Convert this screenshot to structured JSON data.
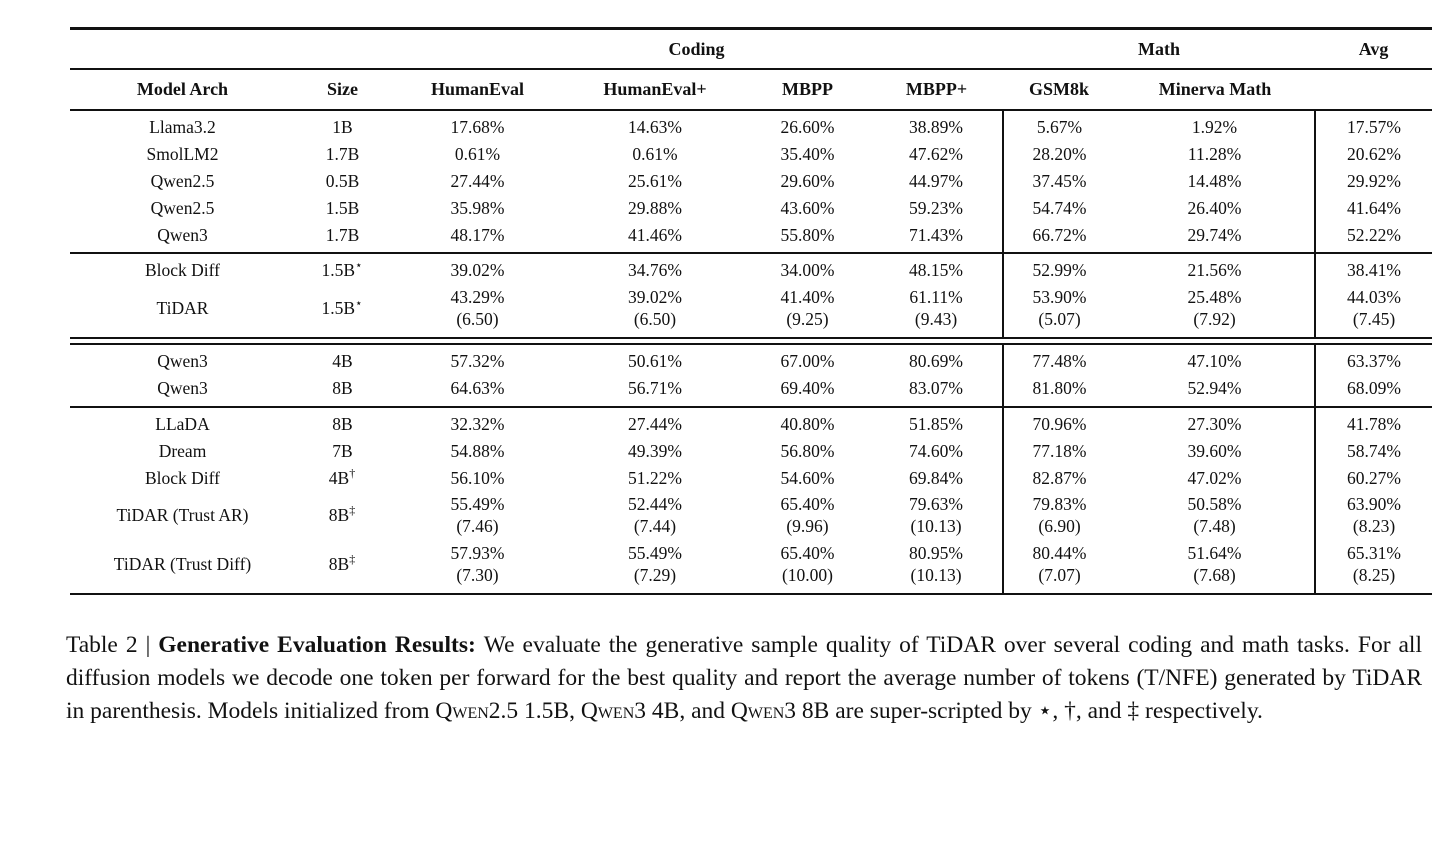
{
  "table": {
    "groups": [
      {
        "label": "",
        "span": 2
      },
      {
        "label": "Coding",
        "span": 4
      },
      {
        "label": "Math",
        "span": 2
      },
      {
        "label": "Avg",
        "span": 1
      }
    ],
    "columns": [
      "Model Arch",
      "Size",
      "HumanEval",
      "HumanEval+",
      "MBPP",
      "MBPP+",
      "GSM8k",
      "Minerva Math",
      ""
    ],
    "blocks": [
      {
        "id": "ar-small",
        "separator_before": "none",
        "rows": [
          {
            "model": "Llama3.2",
            "size": "1B",
            "size_sup": "",
            "values": [
              "17.68%",
              "14.63%",
              "26.60%",
              "38.89%",
              "5.67%",
              "1.92%",
              "17.57%"
            ]
          },
          {
            "model": "SmolLM2",
            "size": "1.7B",
            "size_sup": "",
            "values": [
              "0.61%",
              "0.61%",
              "35.40%",
              "47.62%",
              "28.20%",
              "11.28%",
              "20.62%"
            ]
          },
          {
            "model": "Qwen2.5",
            "size": "0.5B",
            "size_sup": "",
            "values": [
              "27.44%",
              "25.61%",
              "29.60%",
              "44.97%",
              "37.45%",
              "14.48%",
              "29.92%"
            ]
          },
          {
            "model": "Qwen2.5",
            "size": "1.5B",
            "size_sup": "",
            "values": [
              "35.98%",
              "29.88%",
              "43.60%",
              "59.23%",
              "54.74%",
              "26.40%",
              "41.64%"
            ]
          },
          {
            "model": "Qwen3",
            "size": "1.7B",
            "size_sup": "",
            "values": [
              "48.17%",
              "41.46%",
              "55.80%",
              "71.43%",
              "66.72%",
              "29.74%",
              "52.22%"
            ]
          }
        ]
      },
      {
        "id": "diffusion-small",
        "separator_before": "single",
        "rows": [
          {
            "model": "Block Diff",
            "size": "1.5B",
            "size_sup": "⋆",
            "values": [
              "39.02%",
              "34.76%",
              "34.00%",
              "48.15%",
              "52.99%",
              "21.56%",
              "38.41%"
            ]
          },
          {
            "model": "TiDAR",
            "size": "1.5B",
            "size_sup": "⋆",
            "values": [
              "43.29%",
              "39.02%",
              "41.40%",
              "61.11%",
              "53.90%",
              "25.48%",
              "44.03%"
            ],
            "sub": [
              "(6.50)",
              "(6.50)",
              "(9.25)",
              "(9.43)",
              "(5.07)",
              "(7.92)",
              "(7.45)"
            ]
          }
        ]
      },
      {
        "id": "ar-large",
        "separator_before": "double",
        "rows": [
          {
            "model": "Qwen3",
            "size": "4B",
            "size_sup": "",
            "values": [
              "57.32%",
              "50.61%",
              "67.00%",
              "80.69%",
              "77.48%",
              "47.10%",
              "63.37%"
            ]
          },
          {
            "model": "Qwen3",
            "size": "8B",
            "size_sup": "",
            "values": [
              "64.63%",
              "56.71%",
              "69.40%",
              "83.07%",
              "81.80%",
              "52.94%",
              "68.09%"
            ]
          }
        ]
      },
      {
        "id": "diffusion-large",
        "separator_before": "single",
        "rows": [
          {
            "model": "LLaDA",
            "size": "8B",
            "size_sup": "",
            "values": [
              "32.32%",
              "27.44%",
              "40.80%",
              "51.85%",
              "70.96%",
              "27.30%",
              "41.78%"
            ]
          },
          {
            "model": "Dream",
            "size": "7B",
            "size_sup": "",
            "values": [
              "54.88%",
              "49.39%",
              "56.80%",
              "74.60%",
              "77.18%",
              "39.60%",
              "58.74%"
            ]
          },
          {
            "model": "Block Diff",
            "size": "4B",
            "size_sup": "†",
            "values": [
              "56.10%",
              "51.22%",
              "54.60%",
              "69.84%",
              "82.87%",
              "47.02%",
              "60.27%"
            ]
          },
          {
            "model": "TiDAR (Trust AR)",
            "size": "8B",
            "size_sup": "‡",
            "values": [
              "55.49%",
              "52.44%",
              "65.40%",
              "79.63%",
              "79.83%",
              "50.58%",
              "63.90%"
            ],
            "sub": [
              "(7.46)",
              "(7.44)",
              "(9.96)",
              "(10.13)",
              "(6.90)",
              "(7.48)",
              "(8.23)"
            ]
          },
          {
            "model": "TiDAR (Trust Diff)",
            "size": "8B",
            "size_sup": "‡",
            "values": [
              "57.93%",
              "55.49%",
              "65.40%",
              "80.95%",
              "80.44%",
              "51.64%",
              "65.31%"
            ],
            "sub": [
              "(7.30)",
              "(7.29)",
              "(10.00)",
              "(10.13)",
              "(7.07)",
              "(7.68)",
              "(8.25)"
            ]
          }
        ]
      }
    ]
  },
  "caption": {
    "segments": [
      {
        "text": "Table 2 | ",
        "style": "normal"
      },
      {
        "text": "Generative Evaluation Results: ",
        "style": "bold"
      },
      {
        "text": "We evaluate the generative sample quality of TiDAR over several coding and math tasks. For all diffusion models we decode one token per forward for the best quality and report the average number of tokens (T/NFE) generated by TiDAR in parenthesis. Models initialized from ",
        "style": "normal"
      },
      {
        "text": "Qwen2.5",
        "style": "smallcaps"
      },
      {
        "text": " 1.5B, ",
        "style": "normal"
      },
      {
        "text": "Qwen3",
        "style": "smallcaps"
      },
      {
        "text": " 4B, and ",
        "style": "normal"
      },
      {
        "text": "Qwen3",
        "style": "smallcaps"
      },
      {
        "text": " 8B are super-scripted by ⋆, †, and ‡ respectively.",
        "style": "normal"
      }
    ]
  }
}
